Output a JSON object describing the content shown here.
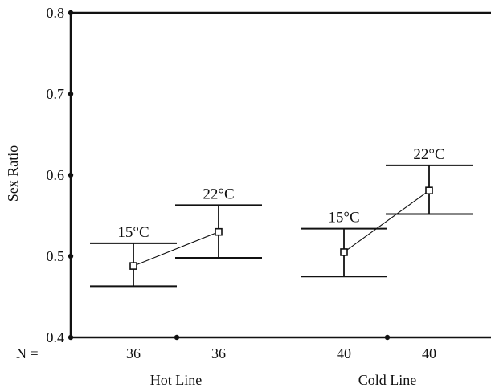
{
  "chart_data": {
    "type": "scatter",
    "title": "",
    "xlabel": "",
    "ylabel": "Sex Ratio",
    "ylim": [
      0.4,
      0.8
    ],
    "yticks": [
      "0.4",
      "0.5",
      "0.6",
      "0.7",
      "0.8"
    ],
    "n_label": "N =",
    "groups": [
      {
        "name": "Hot Line",
        "points": [
          {
            "label": "15°C",
            "n": "36",
            "y": 0.488,
            "ci_low": 0.463,
            "ci_high": 0.516
          },
          {
            "label": "22°C",
            "n": "36",
            "y": 0.53,
            "ci_low": 0.498,
            "ci_high": 0.563
          }
        ]
      },
      {
        "name": "Cold Line",
        "points": [
          {
            "label": "15°C",
            "n": "40",
            "y": 0.505,
            "ci_low": 0.475,
            "ci_high": 0.534
          },
          {
            "label": "22°C",
            "n": "40",
            "y": 0.581,
            "ci_low": 0.552,
            "ci_high": 0.612
          }
        ]
      }
    ],
    "grid": false,
    "colors": {
      "ink": "#111111",
      "background": "#ffffff"
    }
  }
}
